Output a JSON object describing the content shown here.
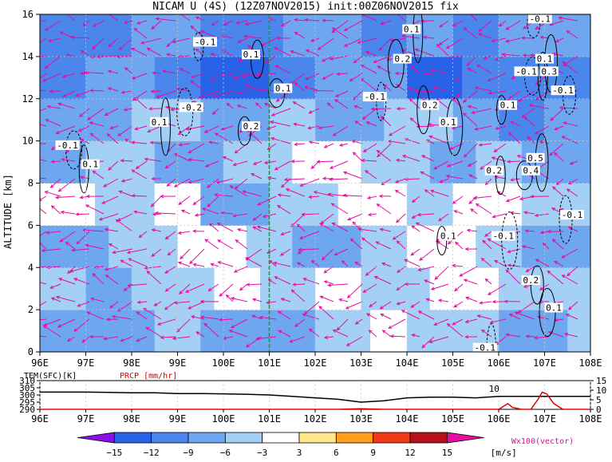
{
  "title": "NICAM U (4S) (12Z07NOV2015) init:00Z06NOV2015 fix",
  "chart_data": [
    {
      "type": "heatmap",
      "name": "zonal wind cross-section",
      "xlabel": "",
      "ylabel": "ALTITUDE [km]",
      "x_ticks": [
        "96E",
        "97E",
        "98E",
        "99E",
        "100E",
        "101E",
        "102E",
        "103E",
        "104E",
        "105E",
        "106E",
        "107E",
        "108E"
      ],
      "y_ticks": [
        "0",
        "2",
        "4",
        "6",
        "8",
        "10",
        "12",
        "14",
        "16"
      ],
      "xlim": [
        96,
        108
      ],
      "ylim": [
        0,
        16
      ],
      "grid": true,
      "marker_line_lon": 101,
      "shading_bands": [
        {
          "alt": [
            0,
            2
          ],
          "bands": [
            [
              96,
              98.5,
              -9
            ],
            [
              98.5,
              99.5,
              -6
            ],
            [
              99.5,
              102,
              -9
            ],
            [
              102,
              103.2,
              -6
            ],
            [
              103.2,
              104,
              -3
            ],
            [
              104,
              106,
              -6
            ],
            [
              106,
              107.5,
              -9
            ],
            [
              107.5,
              108,
              -6
            ]
          ]
        },
        {
          "alt": [
            2,
            4
          ],
          "bands": [
            [
              96,
              97,
              -6
            ],
            [
              97,
              98,
              -9
            ],
            [
              98,
              99.8,
              -6
            ],
            [
              99.8,
              100.8,
              -3
            ],
            [
              100.8,
              102,
              -6
            ],
            [
              102,
              103,
              -3
            ],
            [
              103,
              104.5,
              -6
            ],
            [
              104.5,
              106,
              -3
            ],
            [
              106,
              108,
              -6
            ]
          ]
        },
        {
          "alt": [
            4,
            6
          ],
          "bands": [
            [
              96,
              97.5,
              -9
            ],
            [
              97.5,
              99,
              -6
            ],
            [
              99,
              100.5,
              -3
            ],
            [
              100.5,
              101.5,
              -6
            ],
            [
              101.5,
              103,
              -9
            ],
            [
              103,
              104,
              -6
            ],
            [
              104,
              105.5,
              -3
            ],
            [
              105.5,
              106.5,
              -6
            ],
            [
              106.5,
              108,
              -9
            ]
          ]
        },
        {
          "alt": [
            6,
            8
          ],
          "bands": [
            [
              96,
              97.2,
              -3
            ],
            [
              97.2,
              98.5,
              -6
            ],
            [
              98.5,
              99.5,
              -3
            ],
            [
              99.5,
              101,
              -9
            ],
            [
              101,
              102.5,
              -6
            ],
            [
              102.5,
              104,
              -3
            ],
            [
              104,
              105,
              -6
            ],
            [
              105,
              106.5,
              -3
            ],
            [
              106.5,
              108,
              -6
            ]
          ]
        },
        {
          "alt": [
            8,
            10
          ],
          "bands": [
            [
              96,
              97,
              -9
            ],
            [
              97,
              98.5,
              -6
            ],
            [
              98.5,
              100,
              -9
            ],
            [
              100,
              101.5,
              -6
            ],
            [
              101.5,
              103,
              -3
            ],
            [
              103,
              104.5,
              -6
            ],
            [
              104.5,
              105.5,
              -9
            ],
            [
              105.5,
              106.5,
              -6
            ],
            [
              106.5,
              108,
              -9
            ]
          ]
        },
        {
          "alt": [
            10,
            12
          ],
          "bands": [
            [
              96,
              98,
              -9
            ],
            [
              98,
              99.5,
              -6
            ],
            [
              99.5,
              101,
              -9
            ],
            [
              101,
              102,
              -6
            ],
            [
              102,
              103.5,
              -9
            ],
            [
              103.5,
              105,
              -6
            ],
            [
              105,
              106,
              -9
            ],
            [
              106,
              107,
              -12
            ],
            [
              107,
              108,
              -9
            ]
          ]
        },
        {
          "alt": [
            12,
            14
          ],
          "bands": [
            [
              96,
              97,
              -12
            ],
            [
              97,
              98.5,
              -9
            ],
            [
              98.5,
              99.5,
              -12
            ],
            [
              99.5,
              101,
              -15
            ],
            [
              101,
              102,
              -12
            ],
            [
              102,
              104,
              -9
            ],
            [
              104,
              105.2,
              -15
            ],
            [
              105.2,
              106,
              -12
            ],
            [
              106,
              108,
              -12
            ]
          ]
        },
        {
          "alt": [
            14,
            16
          ],
          "bands": [
            [
              96,
              98,
              -12
            ],
            [
              98,
              99.5,
              -9
            ],
            [
              99.5,
              101.3,
              -12
            ],
            [
              101.3,
              103,
              -9
            ],
            [
              103,
              104,
              -12
            ],
            [
              104,
              105,
              -9
            ],
            [
              105,
              106,
              -12
            ],
            [
              106,
              108,
              -9
            ]
          ]
        }
      ],
      "contour_labels": [
        {
          "text": "-0.1",
          "lon": 99.6,
          "alt": 14.7
        },
        {
          "text": "0.1",
          "lon": 100.6,
          "alt": 14.1
        },
        {
          "text": "0.2",
          "lon": 103.9,
          "alt": 13.9
        },
        {
          "text": "0.1",
          "lon": 104.1,
          "alt": 15.3
        },
        {
          "text": "-0.1",
          "lon": 106.9,
          "alt": 15.8
        },
        {
          "text": "-0.1",
          "lon": 106.6,
          "alt": 13.3
        },
        {
          "text": "0.3",
          "lon": 107.1,
          "alt": 13.3
        },
        {
          "text": "0.1",
          "lon": 107.0,
          "alt": 13.9
        },
        {
          "text": "0.1",
          "lon": 101.3,
          "alt": 12.5
        },
        {
          "text": "-0.1",
          "lon": 103.3,
          "alt": 12.1
        },
        {
          "text": "0.2",
          "lon": 104.5,
          "alt": 11.7
        },
        {
          "text": "0.1",
          "lon": 104.9,
          "alt": 10.9
        },
        {
          "text": "0.1",
          "lon": 106.2,
          "alt": 11.7
        },
        {
          "text": "-0.1",
          "lon": 107.4,
          "alt": 12.4
        },
        {
          "text": "-0.2",
          "lon": 99.3,
          "alt": 11.6
        },
        {
          "text": "0.1",
          "lon": 98.6,
          "alt": 10.9
        },
        {
          "text": "0.2",
          "lon": 100.6,
          "alt": 10.7
        },
        {
          "text": "-0.1",
          "lon": 96.6,
          "alt": 9.8
        },
        {
          "text": "0.1",
          "lon": 97.1,
          "alt": 8.9
        },
        {
          "text": "0.5",
          "lon": 106.8,
          "alt": 9.2
        },
        {
          "text": "0.4",
          "lon": 106.7,
          "alt": 8.6
        },
        {
          "text": "0.2",
          "lon": 105.9,
          "alt": 8.6
        },
        {
          "text": "-0.1",
          "lon": 107.6,
          "alt": 6.5
        },
        {
          "text": "-0.1",
          "lon": 106.1,
          "alt": 5.5
        },
        {
          "text": "0.1",
          "lon": 104.9,
          "alt": 5.5
        },
        {
          "text": "0.2",
          "lon": 106.7,
          "alt": 3.4
        },
        {
          "text": "0.1",
          "lon": 107.2,
          "alt": 2.1
        },
        {
          "text": "-0.1",
          "lon": 105.7,
          "alt": 0.2
        }
      ]
    },
    {
      "type": "line",
      "name": "surface panel",
      "series": [
        {
          "name": "TEM(SFC)[K]",
          "axis": "left",
          "color": "#000000",
          "x": [
            96,
            96.5,
            97,
            97.5,
            98,
            98.5,
            99,
            99.5,
            100,
            100.5,
            101,
            101.5,
            102,
            102.5,
            103,
            103.5,
            104,
            104.5,
            105,
            105.5,
            106,
            106.5,
            107,
            107.5,
            108
          ],
          "y": [
            302,
            302,
            302,
            301.8,
            301.5,
            301.5,
            301,
            301,
            300.8,
            300.5,
            300,
            299,
            298,
            297,
            295,
            296,
            298,
            298.5,
            298.5,
            298,
            299,
            299,
            299,
            299,
            299
          ]
        },
        {
          "name": "PRCP [mm/hr]",
          "axis": "right",
          "color": "#e00000",
          "x": [
            96,
            102.5,
            102.8,
            103,
            103.2,
            103.5,
            105.8,
            106,
            106.1,
            106.2,
            106.3,
            106.5,
            106.7,
            106.85,
            106.95,
            107.05,
            107.2,
            107.4,
            108
          ],
          "y": [
            0,
            0,
            0.2,
            0.3,
            0.2,
            0,
            0,
            0,
            1.5,
            3,
            1,
            0,
            0,
            5,
            9,
            8,
            3,
            0,
            0
          ]
        }
      ],
      "left_ticks": [
        "310",
        "305",
        "300",
        "295",
        "290"
      ],
      "left_lim": [
        290,
        310
      ],
      "right_ticks": [
        "15",
        "10",
        "5",
        "0"
      ],
      "right_lim": [
        0,
        15
      ],
      "x_ticks": [
        "96E",
        "97E",
        "98E",
        "99E",
        "100E",
        "101E",
        "102E",
        "103E",
        "104E",
        "105E",
        "106E",
        "107E",
        "108E"
      ],
      "annotation": "10"
    }
  ],
  "colorbar": {
    "labels": [
      "−15",
      "−12",
      "−9",
      "−6",
      "−3",
      "3",
      "6",
      "9",
      "12",
      "15"
    ],
    "unit": "[m/s]",
    "colors": [
      "#8a10e8",
      "#2862e6",
      "#4b86ec",
      "#6fa6f0",
      "#a4d0f5",
      "#ffffff",
      "#ffe68a",
      "#ff9f1c",
      "#f23a18",
      "#b8101a",
      "#e80ca0"
    ]
  },
  "vector_legend": "Wx100(vector)"
}
